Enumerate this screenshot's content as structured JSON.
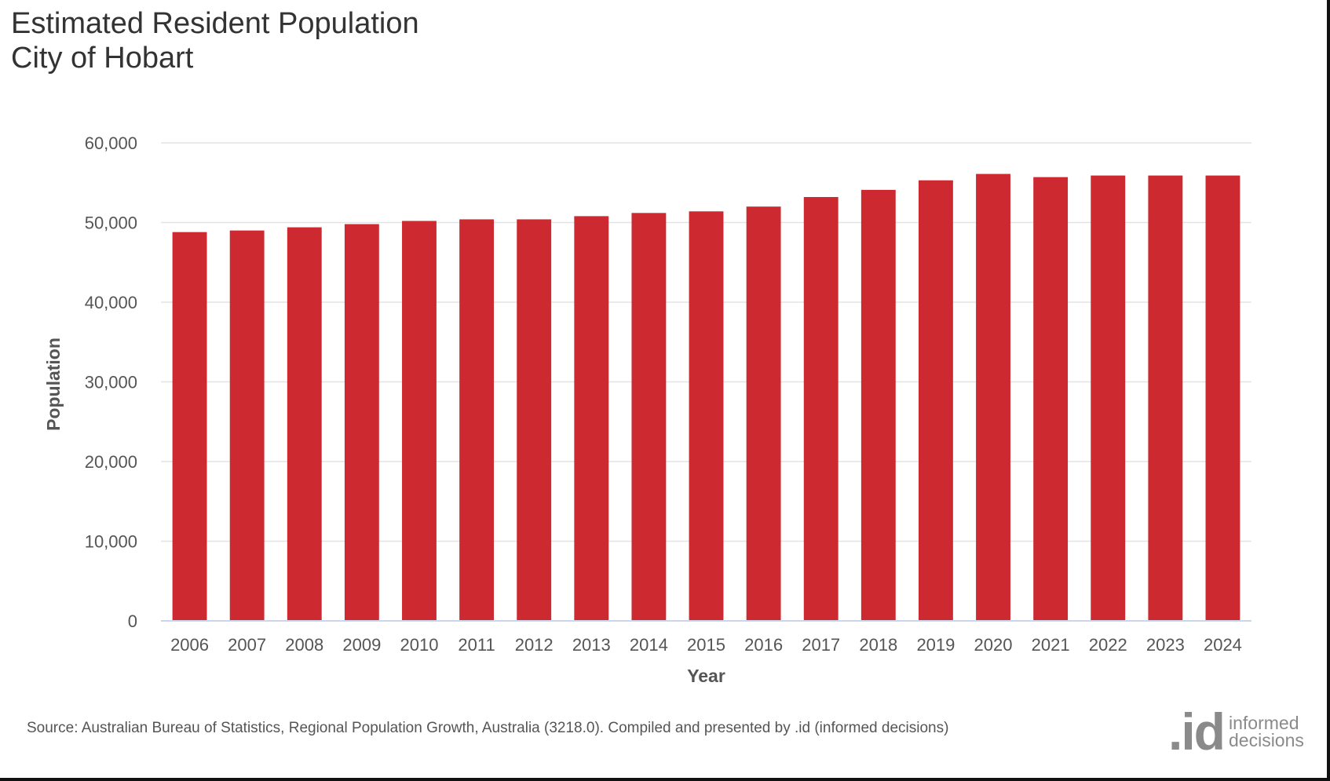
{
  "title": {
    "line1": "Estimated Resident Population",
    "line2": "City of Hobart"
  },
  "colors": {
    "bar": "#cc2a30",
    "grid": "#e3e3e3",
    "axis": "#ccd6eb",
    "text": "#555555"
  },
  "chart_data": {
    "type": "bar",
    "title": "Estimated Resident Population City of Hobart",
    "xlabel": "Year",
    "ylabel": "Population",
    "ylim": [
      0,
      60000
    ],
    "yticks": [
      0,
      10000,
      20000,
      30000,
      40000,
      50000,
      60000
    ],
    "ytick_labels": [
      "0",
      "10,000",
      "20,000",
      "30,000",
      "40,000",
      "50,000",
      "60,000"
    ],
    "grid": true,
    "categories": [
      "2006",
      "2007",
      "2008",
      "2009",
      "2010",
      "2011",
      "2012",
      "2013",
      "2014",
      "2015",
      "2016",
      "2017",
      "2018",
      "2019",
      "2020",
      "2021",
      "2022",
      "2023",
      "2024"
    ],
    "series": [
      {
        "name": "Estimated Resident Population",
        "values": [
          48800,
          49000,
          49400,
          49800,
          50200,
          50400,
          50400,
          50800,
          51200,
          51400,
          52000,
          53200,
          54100,
          55300,
          56100,
          55700,
          55900,
          55900,
          55900
        ]
      }
    ]
  },
  "source": "Source: Australian Bureau of Statistics, Regional Population Growth, Australia (3218.0). Compiled and presented by .id (informed decisions)",
  "logo": {
    "mark": ".id",
    "line1": "informed",
    "line2": "decisions"
  }
}
